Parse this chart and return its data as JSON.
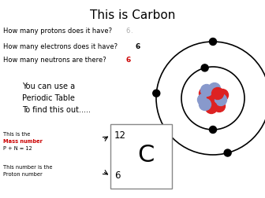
{
  "title": "This is Carbon",
  "q1": "How many protons does it have?",
  "q1_ans": " 6.",
  "q1_ans_color": "#aaaaaa",
  "q2": "How many electrons does it have?",
  "q2_ans": " 6",
  "q2_ans_color": "#000000",
  "q3": "How many neutrons are there?",
  "q3_ans": " 6",
  "q3_ans_color": "#cc0000",
  "periodic_text1": "You can use a",
  "periodic_text2": "Periodic Table",
  "periodic_text3": "To find this out.....",
  "element_symbol": "C",
  "mass_number": "12",
  "proton_number": "6",
  "mass_label1": "This is the",
  "mass_label2": "Mass number",
  "mass_label3": "P + N = 12",
  "proton_label1": "This number is the",
  "proton_label2": "Proton number",
  "nucleus_red_color": "#dd2222",
  "nucleus_blue_color": "#8899cc",
  "bg_color": "#ffffff"
}
